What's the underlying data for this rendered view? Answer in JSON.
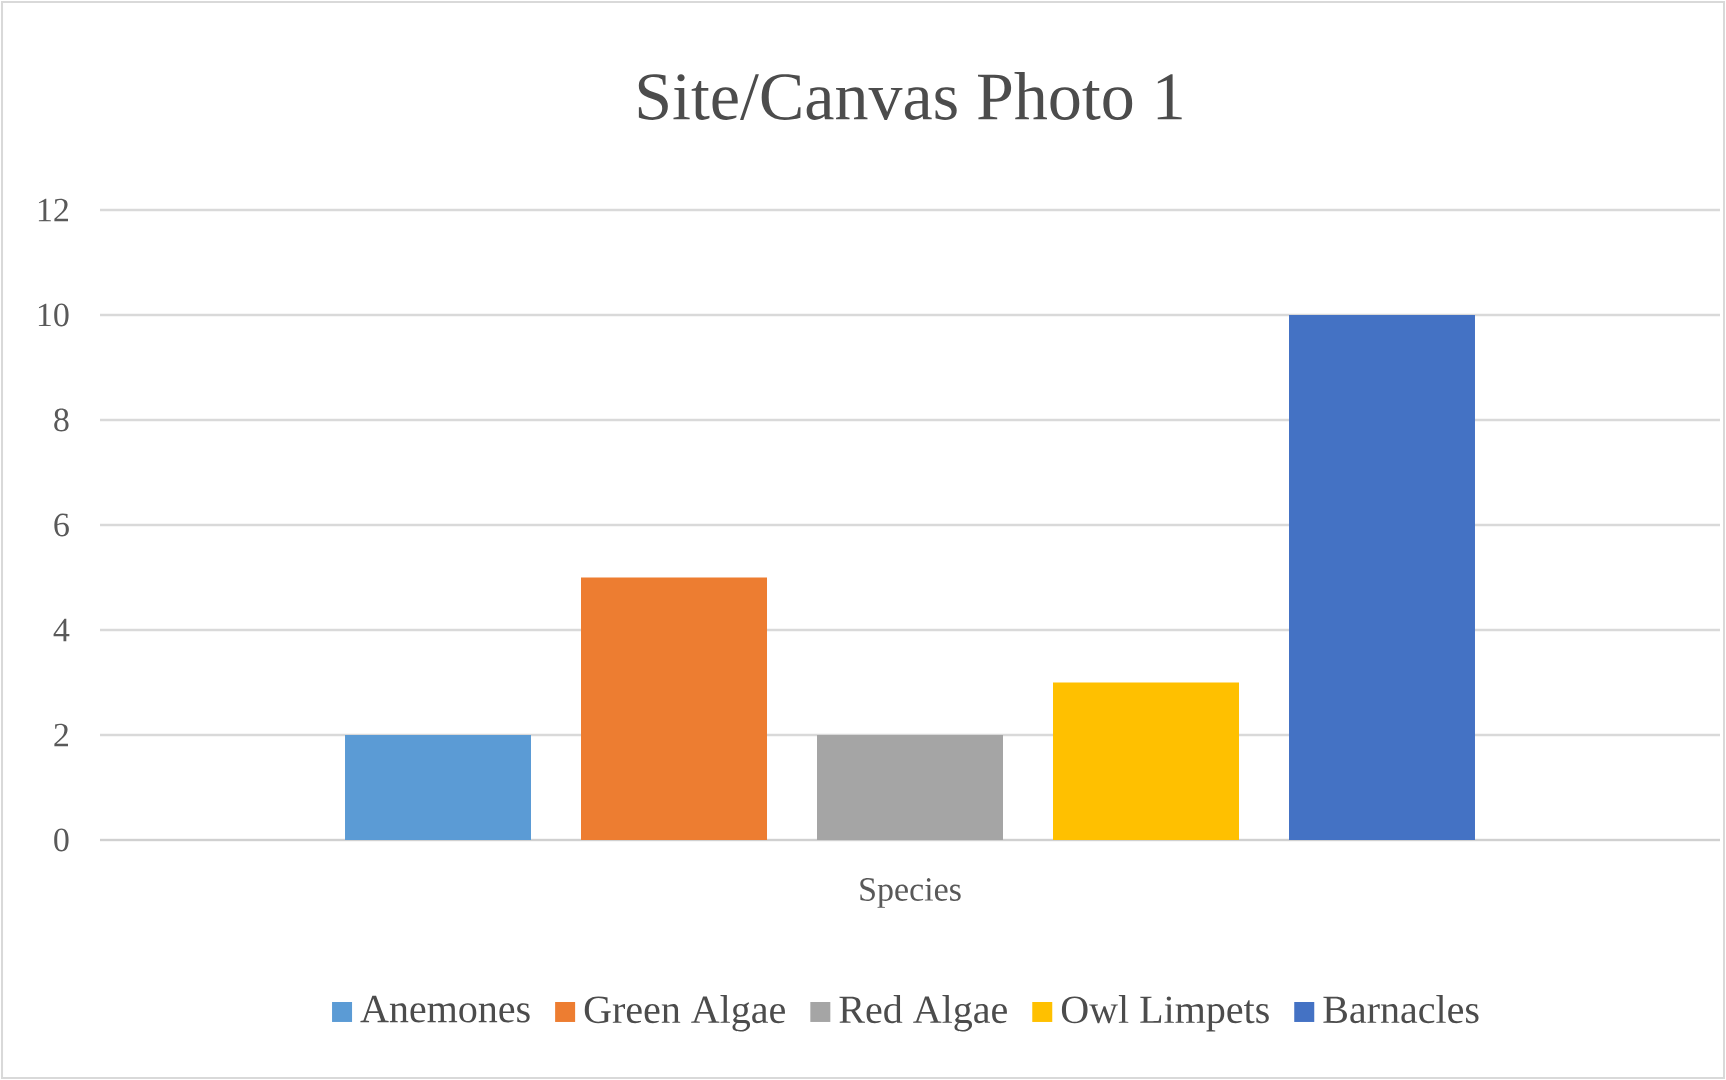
{
  "chart_data": {
    "type": "bar",
    "title": "Site/Canvas Photo 1",
    "categories": [
      "Species"
    ],
    "series": [
      {
        "name": "Anemones",
        "color": "#5b9bd5",
        "values": [
          2
        ]
      },
      {
        "name": "Green Algae",
        "color": "#ed7d31",
        "values": [
          5
        ]
      },
      {
        "name": "Red Algae",
        "color": "#a5a5a5",
        "values": [
          2
        ]
      },
      {
        "name": "Owl Limpets",
        "color": "#ffc000",
        "values": [
          3
        ]
      },
      {
        "name": "Barnacles",
        "color": "#4472c4",
        "values": [
          10
        ]
      }
    ],
    "ylim": [
      0,
      12
    ],
    "yticks": [
      0,
      2,
      4,
      6,
      8,
      10,
      12
    ],
    "grid": "y",
    "legend": "bottom"
  }
}
